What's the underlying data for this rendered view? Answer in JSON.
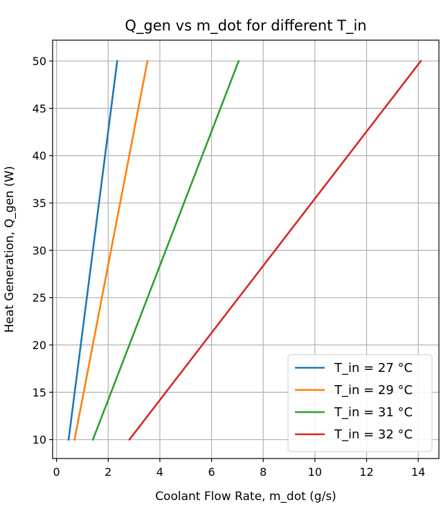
{
  "chart_data": {
    "type": "line",
    "title": "Q_gen vs m_dot for different T_in",
    "xlabel": "Coolant Flow Rate, m_dot (g/s)",
    "ylabel": "Heat Generation, Q_gen (W)",
    "xlim": [
      -0.15,
      14.8
    ],
    "ylim": [
      8,
      52.2
    ],
    "xticks": [
      0,
      2,
      4,
      6,
      8,
      10,
      12,
      14
    ],
    "yticks": [
      10,
      15,
      20,
      25,
      30,
      35,
      40,
      45,
      50
    ],
    "grid": true,
    "legend_position": "lower right",
    "series": [
      {
        "name": "T_in = 27 °C",
        "color": "#1f77b4",
        "x": [
          0.47,
          2.35
        ],
        "y": [
          10,
          50
        ]
      },
      {
        "name": "T_in = 29 °C",
        "color": "#ff7f0e",
        "x": [
          0.7,
          3.52
        ],
        "y": [
          10,
          50
        ]
      },
      {
        "name": "T_in = 31 °C",
        "color": "#2ca02c",
        "x": [
          1.41,
          7.05
        ],
        "y": [
          10,
          50
        ]
      },
      {
        "name": "T_in = 32 °C",
        "color": "#d62728",
        "x": [
          2.82,
          14.1
        ],
        "y": [
          10,
          50
        ]
      }
    ]
  }
}
